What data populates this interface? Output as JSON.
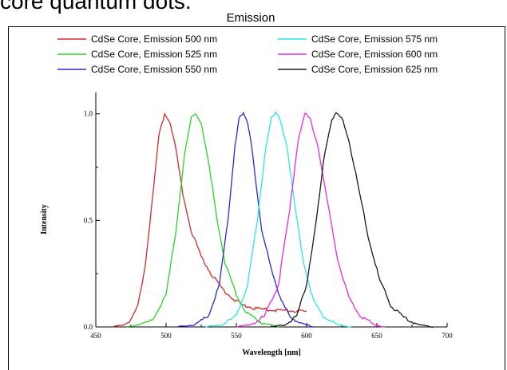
{
  "heading": "core quantum dots.",
  "chart_data": {
    "type": "line",
    "title": "Emission",
    "xlabel": "Wavelength [nm]",
    "ylabel": "Intensity",
    "xlim": [
      450,
      700
    ],
    "ylim": [
      0,
      1.1
    ],
    "x_ticks": [
      450,
      500,
      550,
      600,
      650,
      700
    ],
    "y_ticks": [
      0.0,
      0.5,
      1.0
    ],
    "x_tick_labels": [
      "450",
      "500",
      "550",
      "600",
      "650",
      "700"
    ],
    "y_tick_labels": [
      "0.0",
      "0.5",
      "1.0"
    ],
    "legend_position": "top",
    "grid": false,
    "series": [
      {
        "name": "CdSe Core, Emission 500 nm",
        "color": "#d42a2a",
        "points": [
          [
            462,
            0
          ],
          [
            470,
            0.01
          ],
          [
            475,
            0.03
          ],
          [
            480,
            0.1
          ],
          [
            485,
            0.28
          ],
          [
            490,
            0.58
          ],
          [
            495,
            0.9
          ],
          [
            499,
            1.0
          ],
          [
            503,
            0.96
          ],
          [
            507,
            0.83
          ],
          [
            512,
            0.62
          ],
          [
            518,
            0.45
          ],
          [
            525,
            0.33
          ],
          [
            532,
            0.25
          ],
          [
            540,
            0.18
          ],
          [
            548,
            0.13
          ],
          [
            555,
            0.1
          ],
          [
            565,
            0.085
          ],
          [
            575,
            0.08
          ],
          [
            590,
            0.075
          ],
          [
            600,
            0.07
          ]
        ]
      },
      {
        "name": "CdSe Core, Emission 525 nm",
        "color": "#2ad42a",
        "points": [
          [
            472,
            0
          ],
          [
            480,
            0.01
          ],
          [
            490,
            0.03
          ],
          [
            500,
            0.15
          ],
          [
            507,
            0.45
          ],
          [
            513,
            0.8
          ],
          [
            518,
            0.98
          ],
          [
            521,
            1.0
          ],
          [
            525,
            0.96
          ],
          [
            530,
            0.78
          ],
          [
            536,
            0.52
          ],
          [
            542,
            0.3
          ],
          [
            550,
            0.15
          ],
          [
            558,
            0.06
          ],
          [
            568,
            0.02
          ],
          [
            580,
            0
          ]
        ]
      },
      {
        "name": "CdSe Core, Emission 550 nm",
        "color": "#2a2ad4",
        "points": [
          [
            508,
            0
          ],
          [
            520,
            0.01
          ],
          [
            530,
            0.05
          ],
          [
            538,
            0.2
          ],
          [
            544,
            0.5
          ],
          [
            549,
            0.85
          ],
          [
            552,
            0.98
          ],
          [
            555,
            1.0
          ],
          [
            558,
            0.96
          ],
          [
            561,
            0.85
          ],
          [
            565,
            0.62
          ],
          [
            568,
            0.45
          ],
          [
            572,
            0.35
          ],
          [
            576,
            0.25
          ],
          [
            582,
            0.12
          ],
          [
            588,
            0.05
          ],
          [
            595,
            0.02
          ],
          [
            605,
            0
          ]
        ]
      },
      {
        "name": "CdSe Core, Emission 575 nm",
        "color": "#2ae6e6",
        "points": [
          [
            528,
            0
          ],
          [
            540,
            0.01
          ],
          [
            550,
            0.05
          ],
          [
            558,
            0.2
          ],
          [
            565,
            0.5
          ],
          [
            571,
            0.85
          ],
          [
            575,
            0.98
          ],
          [
            578,
            1.0
          ],
          [
            581,
            0.98
          ],
          [
            586,
            0.85
          ],
          [
            592,
            0.55
          ],
          [
            598,
            0.3
          ],
          [
            605,
            0.12
          ],
          [
            612,
            0.05
          ],
          [
            622,
            0.01
          ],
          [
            632,
            0
          ]
        ]
      },
      {
        "name": "CdSe Core, Emission 600 nm",
        "color": "#e62ae6",
        "points": [
          [
            550,
            0
          ],
          [
            560,
            0.01
          ],
          [
            570,
            0.05
          ],
          [
            580,
            0.2
          ],
          [
            588,
            0.55
          ],
          [
            594,
            0.88
          ],
          [
            599,
            1.0
          ],
          [
            603,
            0.97
          ],
          [
            608,
            0.85
          ],
          [
            615,
            0.58
          ],
          [
            622,
            0.32
          ],
          [
            630,
            0.14
          ],
          [
            638,
            0.05
          ],
          [
            648,
            0.01
          ],
          [
            656,
            0
          ]
        ]
      },
      {
        "name": "CdSe Core, Emission 625 nm",
        "color": "#1a1a1a",
        "points": [
          [
            575,
            0
          ],
          [
            585,
            0.01
          ],
          [
            593,
            0.05
          ],
          [
            600,
            0.2
          ],
          [
            607,
            0.5
          ],
          [
            613,
            0.82
          ],
          [
            618,
            0.98
          ],
          [
            621,
            1.0
          ],
          [
            625,
            0.98
          ],
          [
            630,
            0.88
          ],
          [
            637,
            0.65
          ],
          [
            644,
            0.42
          ],
          [
            652,
            0.22
          ],
          [
            660,
            0.1
          ],
          [
            670,
            0.04
          ],
          [
            680,
            0.01
          ],
          [
            690,
            0
          ]
        ]
      }
    ]
  }
}
